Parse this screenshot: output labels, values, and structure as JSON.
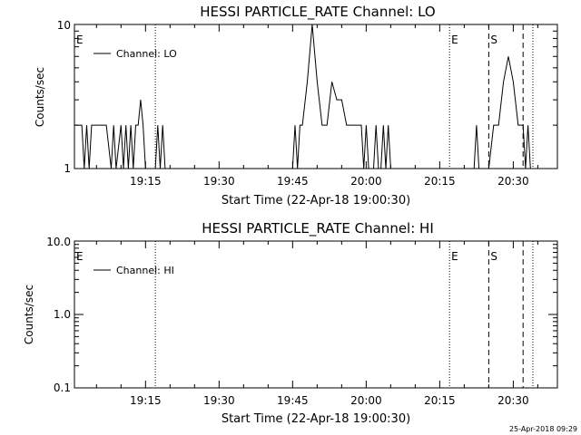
{
  "chart_data": [
    {
      "type": "line",
      "title": "HESSI PARTICLE_RATE Channel: LO",
      "xlabel": "Start Time (22-Apr-18 19:00:30)",
      "ylabel": "Counts/sec",
      "yscale": "log",
      "ylim": [
        1,
        10
      ],
      "xlim_minutes_label": "19:00:30 to 20:39",
      "x_ticks": [
        "19:15",
        "19:30",
        "19:45",
        "20:00",
        "20:15",
        "20:30"
      ],
      "y_ticks": [
        "1",
        "10"
      ],
      "legend": {
        "placement": "top-left",
        "entries": [
          "Channel: LO"
        ]
      },
      "markers": [
        {
          "label": "E",
          "time": "19:00:30",
          "style": "none"
        },
        {
          "label": "",
          "time": "19:17",
          "style": "dotted"
        },
        {
          "label": "E",
          "time": "20:17",
          "style": "dotted"
        },
        {
          "label": "S",
          "time": "20:25",
          "style": "dashed"
        },
        {
          "label": "",
          "time": "20:32",
          "style": "dashed"
        },
        {
          "label": "",
          "time": "20:34",
          "style": "dotted"
        }
      ],
      "series": [
        {
          "name": "Channel: LO",
          "x": [
            "19:00:30",
            "19:02",
            "19:02.5",
            "19:03",
            "19:03.5",
            "19:04",
            "19:05",
            "19:07",
            "19:08",
            "19:08.5",
            "19:09",
            "19:10",
            "19:10.5",
            "19:11",
            "19:11.5",
            "19:12",
            "19:12.5",
            "19:13",
            "19:13.5",
            "19:14",
            "19:14.5",
            "19:15",
            "19:16",
            "19:17",
            "19:17.5",
            "19:18",
            "19:18.5",
            "19:19",
            "19:45",
            "19:45.5",
            "19:46",
            "19:46.5",
            "19:47",
            "19:48",
            "19:49",
            "19:50",
            "19:51",
            "19:52",
            "19:53",
            "19:54",
            "19:55",
            "19:56",
            "19:57",
            "19:58",
            "19:59",
            "19:59.5",
            "20:00",
            "20:00.5",
            "20:01",
            "20:01.5",
            "20:02",
            "20:02.5",
            "20:03",
            "20:03.5",
            "20:04",
            "20:04.5",
            "20:05",
            "20:22",
            "20:22.5",
            "20:23",
            "20:25",
            "20:26",
            "20:27",
            "20:28",
            "20:29",
            "20:30",
            "20:31",
            "20:32",
            "20:32.5",
            "20:33",
            "20:33.5",
            "20:34"
          ],
          "values": [
            2,
            2,
            1,
            2,
            1,
            2,
            2,
            2,
            1,
            2,
            1,
            2,
            1,
            2,
            1,
            2,
            1,
            2,
            2,
            3,
            2,
            1,
            1,
            1,
            2,
            1,
            2,
            1,
            1,
            2,
            1,
            2,
            2,
            4,
            10,
            4,
            2,
            2,
            4,
            3,
            3,
            2,
            2,
            2,
            2,
            1,
            2,
            1,
            1,
            1,
            2,
            1,
            1,
            2,
            1,
            2,
            1,
            1,
            2,
            1,
            1,
            2,
            2,
            4,
            6,
            4,
            2,
            2,
            1,
            2,
            1,
            1
          ]
        }
      ]
    },
    {
      "type": "line",
      "title": "HESSI PARTICLE_RATE Channel: HI",
      "xlabel": "Start Time (22-Apr-18 19:00:30)",
      "ylabel": "Counts/sec",
      "yscale": "log",
      "ylim": [
        0.1,
        10
      ],
      "x_ticks": [
        "19:15",
        "19:30",
        "19:45",
        "20:00",
        "20:15",
        "20:30"
      ],
      "y_ticks": [
        "0.1",
        "1.0",
        "10.0"
      ],
      "legend": {
        "placement": "top-left",
        "entries": [
          "Channel: HI"
        ]
      },
      "markers": [
        {
          "label": "E",
          "time": "19:00:30",
          "style": "none"
        },
        {
          "label": "",
          "time": "19:17",
          "style": "dotted"
        },
        {
          "label": "E",
          "time": "20:17",
          "style": "dotted"
        },
        {
          "label": "S",
          "time": "20:25",
          "style": "dashed"
        },
        {
          "label": "",
          "time": "20:32",
          "style": "dashed"
        },
        {
          "label": "",
          "time": "20:34",
          "style": "dotted"
        }
      ],
      "series": [
        {
          "name": "Channel: HI",
          "x": [],
          "values": []
        }
      ]
    }
  ],
  "footer": {
    "timestamp": "25-Apr-2018 09:29"
  }
}
